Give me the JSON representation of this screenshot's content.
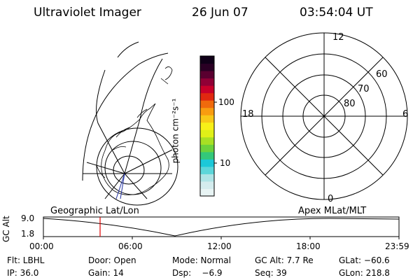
{
  "header": {
    "instrument": "Ultraviolet Imager",
    "date": "26 Jun 07",
    "time": "03:54:04 UT"
  },
  "colorbar": {
    "unit_label": "photon cm⁻²s⁻¹",
    "tick_100": "100",
    "tick_10": "10",
    "colors": [
      "#e8f4f4",
      "#d4ecee",
      "#aee4e6",
      "#5cd6da",
      "#1cc8d8",
      "#34c87a",
      "#6cd23c",
      "#a8e024",
      "#e0f018",
      "#f8f018",
      "#f8c818",
      "#f89c10",
      "#f06a0c",
      "#e02810",
      "#c8002a",
      "#900036",
      "#5a0030",
      "#2a0024",
      "#100018"
    ]
  },
  "geo_map": {
    "label": "Geographic Lat/Lon"
  },
  "polar": {
    "label": "Apex MLat/MLT",
    "mlt_12": "12",
    "mlt_18": "18",
    "mlt_6": "6",
    "mlt_0": "0",
    "lat_60": "60",
    "lat_70": "70",
    "lat_80": "80"
  },
  "altitude_plot": {
    "y_label": "GC Alt",
    "y_max": "9.0",
    "y_min": "1.8",
    "x_ticks": [
      "00:00",
      "06:00",
      "12:00",
      "18:00",
      "23:59"
    ],
    "current_time_color": "#e00000"
  },
  "status": {
    "filter": "Flt: LBHL",
    "door": "Door: Open",
    "mode": "Mode: Normal",
    "gc_alt": "GC Alt: 7.7 Re",
    "glat": "GLat: −60.6",
    "ip": "IP: 36.0",
    "gain": "Gain: 14",
    "dsp": "Dsp:    −6.9",
    "seq": "Seq: 39",
    "glon": "GLon: 218.8"
  }
}
